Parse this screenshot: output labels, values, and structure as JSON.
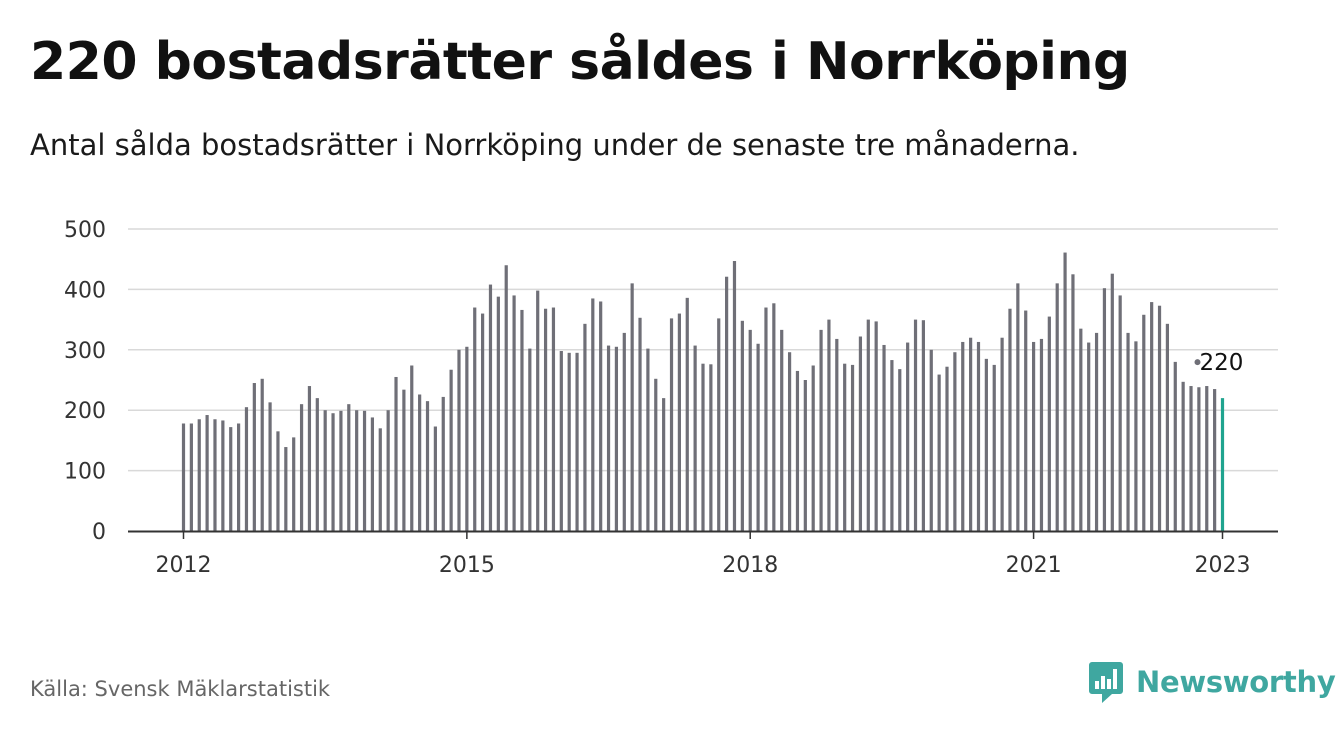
{
  "header": {
    "title": "220 bostadsrätter såldes i Norrköping",
    "subtitle": "Antal sålda bostadsrätter i Norrköping under de senaste tre månaderna."
  },
  "footer": {
    "source": "Källa: Svensk Mäklarstatistik",
    "brand_name": "Newsworthy",
    "brand_icon": "newsworthy-logo-icon",
    "brand_color": "#3fa7a0"
  },
  "chart_data": {
    "type": "bar",
    "title": "220 bostadsrätter såldes i Norrköping",
    "subtitle": "Antal sålda bostadsrätter i Norrköping under de senaste tre månaderna.",
    "xlabel": "",
    "ylabel": "",
    "ylim": [
      0,
      500
    ],
    "yticks": [
      "0",
      "100",
      "200",
      "300",
      "400",
      "500"
    ],
    "xticks": [
      "2012",
      "2015",
      "2018",
      "2021",
      "2023"
    ],
    "grid": true,
    "legend": "none",
    "bar_color": "#6f6f77",
    "highlight_color": "#20a48f",
    "highlight_label": "220",
    "start": "2012-01",
    "end": "2023-01",
    "values": [
      178,
      178,
      185,
      192,
      185,
      183,
      172,
      178,
      205,
      245,
      252,
      213,
      165,
      139,
      155,
      210,
      240,
      220,
      200,
      195,
      199,
      210,
      200,
      199,
      188,
      170,
      200,
      255,
      234,
      274,
      226,
      215,
      173,
      222,
      267,
      300,
      305,
      370,
      360,
      408,
      388,
      440,
      390,
      366,
      302,
      398,
      368,
      370,
      298,
      295,
      295,
      343,
      385,
      380,
      307,
      305,
      328,
      410,
      353,
      302,
      252,
      220,
      352,
      360,
      386,
      307,
      277,
      276,
      352,
      421,
      447,
      348,
      333,
      310,
      370,
      377,
      333,
      296,
      265,
      250,
      274,
      333,
      350,
      318,
      277,
      275,
      322,
      350,
      347,
      308,
      283,
      268,
      312,
      350,
      349,
      300,
      259,
      272,
      296,
      313,
      320,
      313,
      285,
      275,
      320,
      368,
      410,
      365,
      313,
      318,
      355,
      410,
      461,
      425,
      335,
      312,
      328,
      402,
      426,
      390,
      328,
      314,
      358,
      379,
      373,
      343,
      280,
      247,
      240,
      238,
      240,
      235,
      220
    ]
  }
}
